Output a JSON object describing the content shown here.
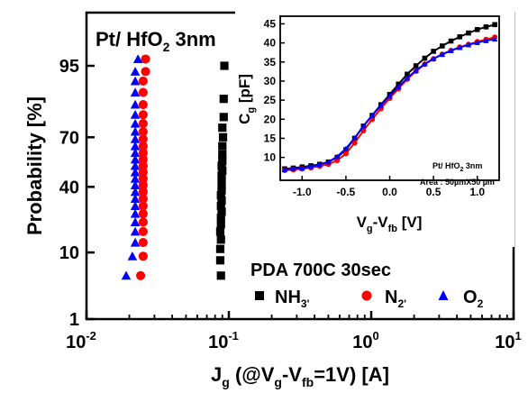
{
  "chart_data": [
    {
      "type": "scatter",
      "title": "Pt/ HfO",
      "title_sub": "2",
      "title_tail": " 3nm",
      "xscale": "log",
      "ylabel": "Probability [%]",
      "xlabel": {
        "main": "J",
        "g_sub": "g",
        "mid": " (@V",
        "g2": "g",
        "minus": "-V",
        "fb": "fb",
        "tail": "=1V) [A]"
      },
      "xlim": [
        0.01,
        10
      ],
      "ylim": [
        1,
        99
      ],
      "xticks": [
        {
          "value": 0.01,
          "base": "10",
          "exp": "-2"
        },
        {
          "value": 0.1,
          "base": "10",
          "exp": "-1"
        },
        {
          "value": 1,
          "base": "10",
          "exp": "0"
        },
        {
          "value": 10,
          "base": "10",
          "exp": "1"
        }
      ],
      "yticks": [
        {
          "value": 1,
          "label": "1"
        },
        {
          "value": 10,
          "label": "10"
        },
        {
          "value": 40,
          "label": "40"
        },
        {
          "value": 70,
          "label": "70"
        },
        {
          "value": 95,
          "label": "95"
        }
      ],
      "legend_title": "PDA 700C 30sec",
      "legend": [
        {
          "label": "NH",
          "sub": "3'",
          "marker": "square",
          "color": "#000000"
        },
        {
          "label": "N",
          "sub": "2'",
          "marker": "circle",
          "color": "#ff0000"
        },
        {
          "label": "O",
          "sub": "2",
          "marker": "triangle",
          "color": "#0000ff"
        }
      ],
      "series": [
        {
          "name": "NH3",
          "marker": "square",
          "color": "#000000",
          "x": [
            0.088,
            0.087,
            0.087,
            0.088,
            0.087,
            0.088,
            0.088,
            0.089,
            0.088,
            0.089,
            0.088,
            0.089,
            0.089,
            0.089,
            0.089,
            0.09,
            0.089,
            0.09,
            0.09,
            0.09,
            0.091,
            0.09,
            0.092,
            0.092,
            0.093
          ],
          "y": [
            5,
            8,
            11,
            14,
            17,
            20,
            23,
            26,
            29,
            32,
            35,
            38,
            41,
            44,
            47,
            50,
            53,
            56,
            60,
            65,
            70,
            75,
            80,
            87,
            95
          ]
        },
        {
          "name": "N2",
          "marker": "circle",
          "color": "#ff0000",
          "x": [
            0.024,
            0.025,
            0.025,
            0.025,
            0.025,
            0.025,
            0.025,
            0.025,
            0.025,
            0.025,
            0.025,
            0.025,
            0.025,
            0.025,
            0.025,
            0.025,
            0.025,
            0.025,
            0.025,
            0.025,
            0.025,
            0.025,
            0.025,
            0.026,
            0.026
          ],
          "y": [
            5,
            9,
            13,
            17,
            21,
            25,
            29,
            33,
            37,
            41,
            45,
            49,
            53,
            57,
            61,
            65,
            69,
            73,
            77,
            81,
            85,
            89,
            92,
            94,
            96
          ]
        },
        {
          "name": "O2",
          "marker": "triangle",
          "color": "#0000ff",
          "x": [
            0.019,
            0.021,
            0.022,
            0.022,
            0.022,
            0.022,
            0.022,
            0.022,
            0.022,
            0.022,
            0.022,
            0.022,
            0.022,
            0.022,
            0.022,
            0.022,
            0.022,
            0.022,
            0.022,
            0.022,
            0.022,
            0.022,
            0.022,
            0.022,
            0.023
          ],
          "y": [
            5,
            9,
            13,
            17,
            21,
            25,
            29,
            33,
            37,
            41,
            45,
            49,
            53,
            57,
            61,
            65,
            69,
            73,
            77,
            81,
            85,
            89,
            92,
            94,
            96
          ]
        }
      ]
    },
    {
      "type": "line",
      "xlabel": {
        "v": "V",
        "g": "g",
        "minus": "-V",
        "fb": "fb",
        "tail": " [V]"
      },
      "ylabel": {
        "c": "C",
        "g": "g",
        "tail": " [pF]"
      },
      "xlim": [
        -1.25,
        1.25
      ],
      "ylim": [
        4,
        47
      ],
      "xticks": [
        "-1.0",
        "-0.5",
        "0.0",
        "0.5",
        "1.0"
      ],
      "yticks": [
        "10",
        "15",
        "20",
        "25",
        "30",
        "35",
        "40",
        "45"
      ],
      "annotation": {
        "line1": "Pt/ HfO",
        "line1_sub": "2",
        "line1_tail": " 3nm",
        "line2": "Area : 50µmX50 µm"
      },
      "series": [
        {
          "name": "NH3",
          "marker": "square",
          "color": "#000000",
          "x": [
            -1.2,
            -1.1,
            -1.0,
            -0.9,
            -0.8,
            -0.7,
            -0.6,
            -0.5,
            -0.4,
            -0.3,
            -0.2,
            -0.1,
            0.0,
            0.1,
            0.2,
            0.3,
            0.4,
            0.5,
            0.6,
            0.7,
            0.8,
            0.9,
            1.0,
            1.1,
            1.2
          ],
          "y": [
            7.0,
            7.2,
            7.5,
            7.8,
            8.2,
            8.8,
            10.0,
            12.0,
            15.0,
            18.2,
            21.0,
            23.8,
            26.5,
            29.2,
            31.8,
            34.0,
            36.0,
            37.8,
            39.2,
            40.5,
            41.6,
            42.6,
            43.5,
            44.2,
            44.8
          ]
        },
        {
          "name": "N2",
          "marker": "circle",
          "color": "#ff0000",
          "x": [
            -1.2,
            -1.1,
            -1.0,
            -0.9,
            -0.8,
            -0.7,
            -0.6,
            -0.5,
            -0.4,
            -0.3,
            -0.2,
            -0.1,
            0.0,
            0.1,
            0.2,
            0.3,
            0.4,
            0.5,
            0.6,
            0.7,
            0.8,
            0.9,
            1.0,
            1.1,
            1.2
          ],
          "y": [
            6.6,
            6.8,
            7.0,
            7.3,
            7.7,
            8.2,
            9.2,
            11.0,
            13.8,
            17.0,
            20.0,
            22.8,
            25.5,
            28.0,
            30.5,
            32.6,
            34.4,
            35.8,
            37.0,
            38.0,
            38.9,
            39.6,
            40.3,
            40.9,
            41.5
          ]
        },
        {
          "name": "O2",
          "marker": "triangle",
          "color": "#0000ff",
          "x": [
            -1.2,
            -1.1,
            -1.0,
            -0.9,
            -0.8,
            -0.7,
            -0.6,
            -0.5,
            -0.4,
            -0.3,
            -0.2,
            -0.1,
            0.0,
            0.1,
            0.2,
            0.3,
            0.4,
            0.5,
            0.6,
            0.7,
            0.8,
            0.9,
            1.0,
            1.1,
            1.2
          ],
          "y": [
            6.8,
            7.0,
            7.2,
            7.6,
            8.1,
            8.8,
            10.2,
            12.3,
            15.1,
            18.2,
            21.0,
            23.6,
            26.1,
            28.5,
            30.8,
            32.8,
            34.5,
            35.9,
            37.0,
            38.0,
            38.8,
            39.5,
            40.1,
            40.6,
            41.0
          ]
        }
      ]
    }
  ]
}
